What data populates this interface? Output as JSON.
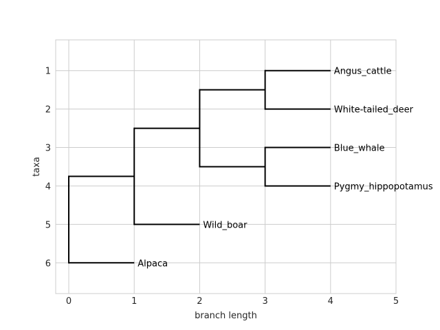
{
  "chart_data": {
    "type": "dendrogram",
    "xlabel": "branch length",
    "ylabel": "taxa",
    "xlim": [
      -0.2,
      5
    ],
    "ylim": [
      6.8,
      0.2
    ],
    "xticks": [
      0,
      1,
      2,
      3,
      4,
      5
    ],
    "yticks": [
      1,
      2,
      3,
      4,
      5,
      6
    ],
    "grid": true,
    "leaves": [
      {
        "name": "Angus_cattle",
        "x": 4,
        "y": 1
      },
      {
        "name": "White-tailed_deer",
        "x": 4,
        "y": 2
      },
      {
        "name": "Blue_whale",
        "x": 4,
        "y": 3
      },
      {
        "name": "Pygmy_hippopotamus",
        "x": 4,
        "y": 4
      },
      {
        "name": "Wild_boar",
        "x": 2,
        "y": 5
      },
      {
        "name": "Alpaca",
        "x": 1,
        "y": 6
      }
    ],
    "clades": [
      {
        "x": 0,
        "y_top": 3.75,
        "y_bottom": 6,
        "children": [
          {
            "x": 1,
            "y": 3.75
          },
          {
            "x": 1,
            "y": 6
          }
        ]
      },
      {
        "x": 1,
        "y_top": 2.5,
        "y_bottom": 5,
        "children": [
          {
            "x": 2,
            "y": 2.5
          },
          {
            "x": 2,
            "y": 5
          }
        ]
      },
      {
        "x": 2,
        "y_top": 1.5,
        "y_bottom": 3.5,
        "children": [
          {
            "x": 3,
            "y": 1.5
          },
          {
            "x": 3,
            "y": 3.5
          }
        ]
      },
      {
        "x": 3,
        "y_top": 1,
        "y_bottom": 2,
        "children": [
          {
            "x": 4,
            "y": 1
          },
          {
            "x": 4,
            "y": 2
          }
        ]
      },
      {
        "x": 3,
        "y_top": 3,
        "y_bottom": 4,
        "children": [
          {
            "x": 4,
            "y": 3
          },
          {
            "x": 4,
            "y": 4
          }
        ]
      }
    ]
  }
}
